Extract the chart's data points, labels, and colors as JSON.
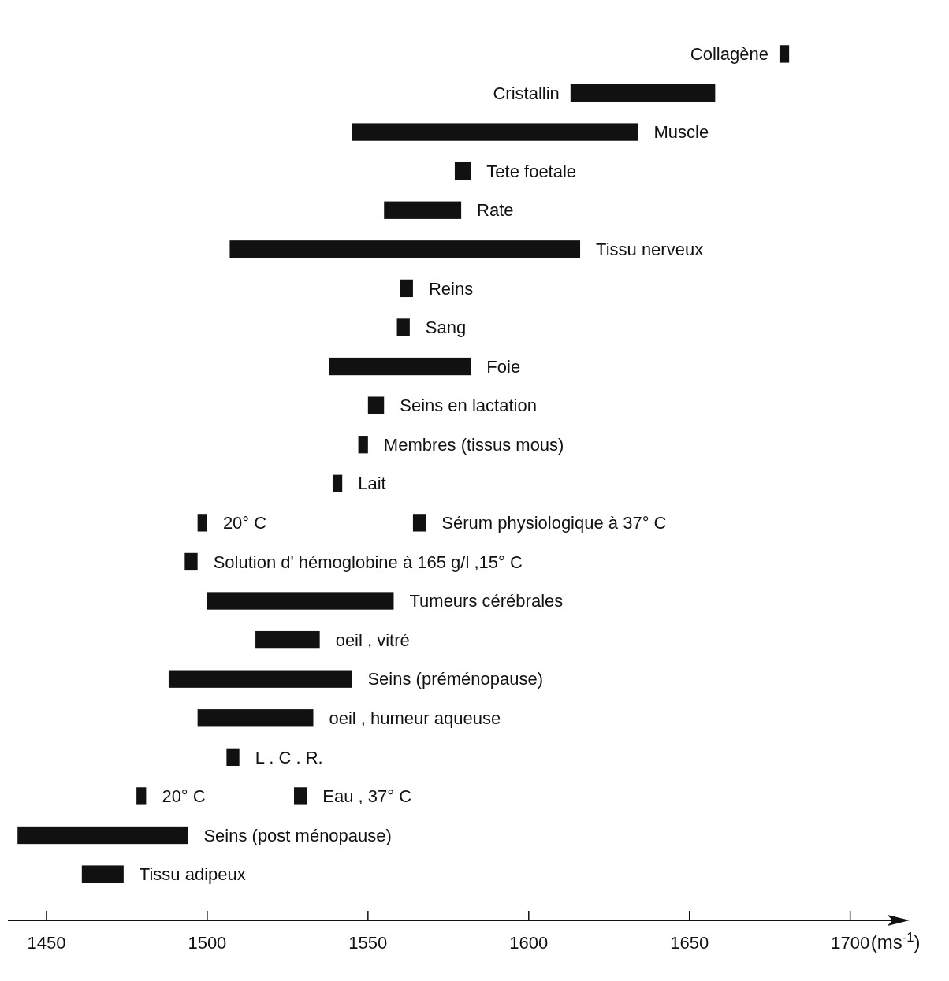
{
  "chart_data": {
    "type": "bar",
    "orientation": "horizontal",
    "xlabel": "(ms$^{-1}$)",
    "categories": [
      "Collagène",
      "Cristallin",
      "Muscle",
      "Tete foetale",
      "Rate",
      "Tissu nerveux",
      "Reins",
      "Sang",
      "Foie",
      "Seins en lactation",
      "Membres (tissus mous)",
      "Lait",
      "Sérum physiologique à 37° C",
      "Solution d' hémoglobine à 165 g/l ,15° C",
      "Tumeurs cérébrales",
      "oeil , vitré",
      "Seins (préménopause)",
      "oeil , humeur aqueuse",
      "L . C . R.",
      "Eau , 37° C",
      "Seins (post ménopause)",
      "Tissu adipeux"
    ],
    "series": [
      {
        "color": "#111111",
        "base": [
          1678,
          1613,
          1545,
          1577,
          1555,
          1507,
          1560,
          1559,
          1538,
          1550,
          1547,
          1539,
          1564,
          1493,
          1500,
          1515,
          1488,
          1497,
          1506,
          1527,
          1441,
          1461
        ],
        "values": [
          3,
          45,
          89,
          5,
          24,
          109,
          4,
          4,
          44,
          5,
          3,
          3,
          4,
          4,
          58,
          20,
          57,
          36,
          4,
          4,
          53,
          13
        ]
      },
      {
        "color": "#111111",
        "base": [
          null,
          null,
          null,
          null,
          null,
          null,
          null,
          null,
          null,
          null,
          null,
          null,
          1497,
          null,
          null,
          null,
          null,
          null,
          null,
          1478,
          null,
          null
        ],
        "values": [
          null,
          null,
          null,
          null,
          null,
          null,
          null,
          null,
          null,
          null,
          null,
          null,
          3,
          null,
          null,
          null,
          null,
          null,
          null,
          3,
          null,
          null
        ]
      }
    ],
    "annotations": [
      {
        "text": "20° C",
        "x": 1500,
        "y": "Sérum physiologique à 37° C"
      },
      {
        "text": "20° C",
        "x": 1481,
        "y": "Eau , 37° C"
      }
    ],
    "xlim": [
      1438,
      1717
    ],
    "xticks": [
      1450,
      1500,
      1550,
      1600,
      1650,
      1700
    ]
  }
}
